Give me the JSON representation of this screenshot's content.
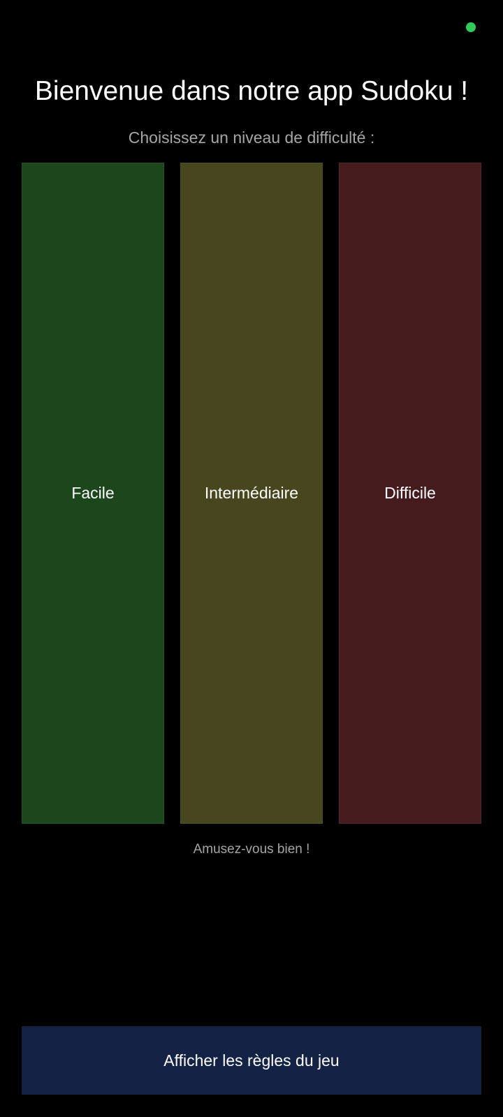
{
  "status": {
    "indicator_color": "#2fcc5b"
  },
  "header": {
    "title": "Bienvenue dans notre app Sudoku !",
    "subtitle": "Choisissez un niveau de difficulté :"
  },
  "levels": [
    {
      "label": "Facile",
      "color": "#1c461b"
    },
    {
      "label": "Intermédiaire",
      "color": "#47461e"
    },
    {
      "label": "Difficile",
      "color": "#461b1e"
    }
  ],
  "footer": {
    "note": "Amusez-vous bien !"
  },
  "rules_button": {
    "label": "Afficher les règles du jeu",
    "color": "#132245"
  }
}
